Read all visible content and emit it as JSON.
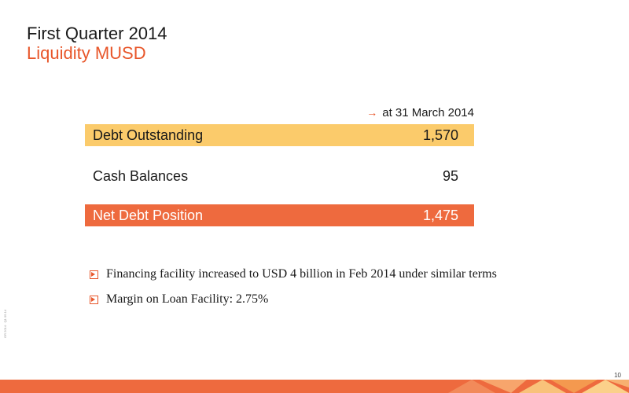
{
  "header": {
    "title": "First Quarter 2014",
    "subtitle": "Liquidity  MUSD"
  },
  "table": {
    "date_label": "at 31 March 2014",
    "rows": [
      {
        "label": "Debt Outstanding",
        "value": "1,570"
      },
      {
        "label": "Cash Balances",
        "value": "95"
      },
      {
        "label": "Net Debt Position",
        "value": "1,475"
      }
    ]
  },
  "bullets": [
    "Financing facility increased to USD 4 billion in Feb 2014 under similar terms",
    "Margin on Loan Facility: 2.75%"
  ],
  "footer": {
    "sidenote": "GR 2014 · Q1 05.14",
    "page_number": "10"
  },
  "colors": {
    "accent": "#e8562a",
    "debt_row": "#fbcb6b",
    "net_row": "#ee6a3e"
  }
}
